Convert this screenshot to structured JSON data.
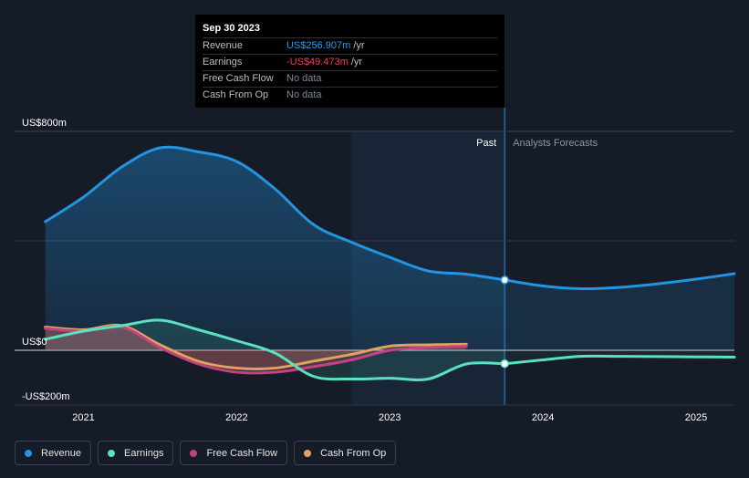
{
  "tooltip": {
    "date": "Sep 30 2023",
    "rows": [
      {
        "label": "Revenue",
        "value": "US$256.907m",
        "unit": "/yr",
        "color": "#2a9df4"
      },
      {
        "label": "Earnings",
        "value": "-US$49.473m",
        "unit": "/yr",
        "color": "#f23e55"
      },
      {
        "label": "Free Cash Flow",
        "value": "No data",
        "unit": "",
        "color": "#7f8a99"
      },
      {
        "label": "Cash From Op",
        "value": "No data",
        "unit": "",
        "color": "#7f8a99"
      }
    ]
  },
  "labels": {
    "past": "Past",
    "forecast": "Analysts Forecasts"
  },
  "legend": [
    {
      "label": "Revenue",
      "color": "#2394df"
    },
    {
      "label": "Earnings",
      "color": "#58e2c2"
    },
    {
      "label": "Free Cash Flow",
      "color": "#c1447f"
    },
    {
      "label": "Cash From Op",
      "color": "#e0a25f"
    }
  ],
  "chart_data": {
    "type": "line",
    "title": "",
    "xlabel": "",
    "ylabel": "",
    "x_unit": "year",
    "xlim": [
      2020.55,
      2025.25
    ],
    "ylim": [
      -200,
      800
    ],
    "y_ticks": [
      {
        "value": 800,
        "label": "US$800m"
      },
      {
        "value": 0,
        "label": "US$0"
      },
      {
        "value": -200,
        "label": "-US$200m"
      }
    ],
    "x_ticks": [
      {
        "value": 2021,
        "label": "2021"
      },
      {
        "value": 2022,
        "label": "2022"
      },
      {
        "value": 2023,
        "label": "2023"
      },
      {
        "value": 2024,
        "label": "2024"
      },
      {
        "value": 2025,
        "label": "2025"
      }
    ],
    "highlight_start": 2022.75,
    "past_end": 2023.75,
    "series": [
      {
        "name": "Revenue",
        "color": "#2394df",
        "fill": true,
        "points": [
          [
            2020.75,
            470
          ],
          [
            2021.0,
            560
          ],
          [
            2021.25,
            670
          ],
          [
            2021.5,
            740
          ],
          [
            2021.75,
            725
          ],
          [
            2022.0,
            690
          ],
          [
            2022.25,
            590
          ],
          [
            2022.5,
            460
          ],
          [
            2022.75,
            395
          ],
          [
            2023.0,
            340
          ],
          [
            2023.25,
            290
          ],
          [
            2023.5,
            278
          ],
          [
            2023.75,
            257
          ]
        ],
        "forecast": [
          [
            2023.75,
            257
          ],
          [
            2024.0,
            235
          ],
          [
            2024.25,
            225
          ],
          [
            2024.5,
            230
          ],
          [
            2024.75,
            243
          ],
          [
            2025.0,
            260
          ],
          [
            2025.25,
            280
          ]
        ]
      },
      {
        "name": "Earnings",
        "color": "#58e2c2",
        "fill": true,
        "points": [
          [
            2020.75,
            40
          ],
          [
            2021.0,
            70
          ],
          [
            2021.25,
            90
          ],
          [
            2021.5,
            110
          ],
          [
            2021.75,
            75
          ],
          [
            2022.0,
            35
          ],
          [
            2022.25,
            -10
          ],
          [
            2022.5,
            -95
          ],
          [
            2022.75,
            -105
          ],
          [
            2023.0,
            -102
          ],
          [
            2023.25,
            -105
          ],
          [
            2023.5,
            -50
          ],
          [
            2023.75,
            -49
          ]
        ],
        "forecast": [
          [
            2023.75,
            -49
          ],
          [
            2024.0,
            -35
          ],
          [
            2024.25,
            -22
          ],
          [
            2024.5,
            -22
          ],
          [
            2024.75,
            -23
          ],
          [
            2025.0,
            -24
          ],
          [
            2025.25,
            -25
          ]
        ]
      },
      {
        "name": "Free Cash Flow",
        "color": "#c1447f",
        "fill": true,
        "points": [
          [
            2020.75,
            80
          ],
          [
            2021.0,
            70
          ],
          [
            2021.25,
            85
          ],
          [
            2021.5,
            10
          ],
          [
            2021.75,
            -50
          ],
          [
            2022.0,
            -80
          ],
          [
            2022.25,
            -80
          ],
          [
            2022.5,
            -60
          ],
          [
            2022.75,
            -35
          ],
          [
            2023.0,
            0
          ],
          [
            2023.25,
            10
          ],
          [
            2023.5,
            15
          ]
        ]
      },
      {
        "name": "Cash From Op",
        "color": "#e0a25f",
        "fill": true,
        "points": [
          [
            2020.75,
            85
          ],
          [
            2021.0,
            75
          ],
          [
            2021.25,
            90
          ],
          [
            2021.5,
            20
          ],
          [
            2021.75,
            -40
          ],
          [
            2022.0,
            -65
          ],
          [
            2022.25,
            -65
          ],
          [
            2022.5,
            -40
          ],
          [
            2022.75,
            -15
          ],
          [
            2023.0,
            15
          ],
          [
            2023.25,
            20
          ],
          [
            2023.5,
            22
          ]
        ]
      }
    ]
  }
}
